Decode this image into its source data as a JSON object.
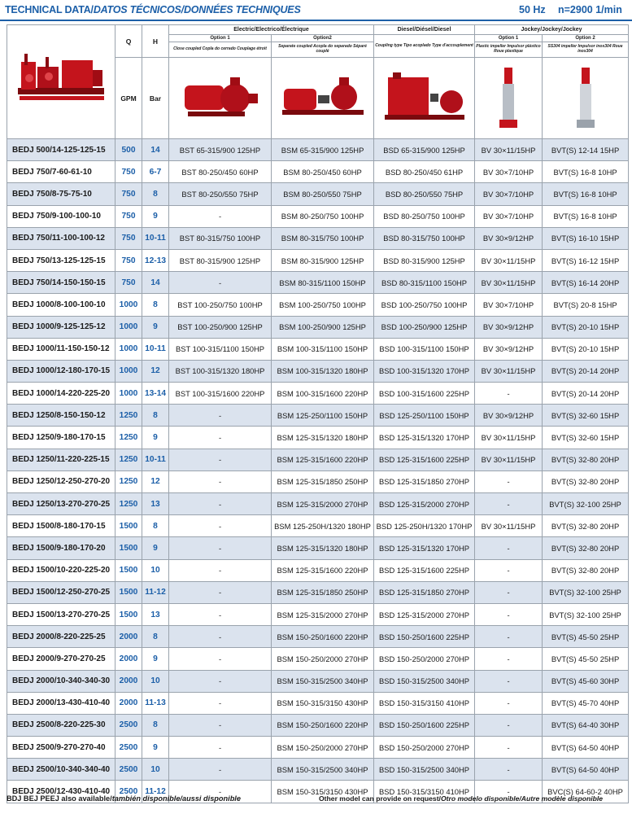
{
  "header": {
    "title_bold": "TECHNICAL DATA/",
    "title_italic": "DATOS TÉCNICOS/DONNÉES TECHNIQUES",
    "hz": "50 Hz",
    "rpm": "n=2900 1/min"
  },
  "columns": {
    "q": "Q",
    "h": "H",
    "q_unit": "GPM",
    "h_unit": "Bar",
    "electric_group": "Electric/Electrico/Électrique",
    "diesel_group": "Diesel/Diésel/Diesel",
    "jockey_group": "Jockey/Jockey/Jockey",
    "e_opt1": "Option 1",
    "e_opt2": "Option2",
    "j_opt1": "Option 1",
    "j_opt2": "Option 2",
    "e_opt1_desc": "Close coupled Copla do cerrado Couplage étroit",
    "e_opt2_desc": "Separate coupled Acopla do separado Séparé couplé",
    "d_desc": "Coupling type Tipo acoplado Type d'accouplement",
    "j_opt1_desc": "Plastic impeller Impulsor plástico Roue plastique",
    "j_opt2_desc": "SS304 impeller Impulsor inox304 Roue inox304"
  },
  "rows": [
    {
      "model": "BEDJ 500/14-125-125-15",
      "q": "500",
      "h": "14",
      "e1": "BST 65-315/900 125HP",
      "e2": "BSM 65-315/900 125HP",
      "d": "BSD 65-315/900 125HP",
      "j1": "BV 30×11/15HP",
      "j2": "BVT(S) 12-14 15HP"
    },
    {
      "model": "BEDJ 750/7-60-61-10",
      "q": "750",
      "h": "6-7",
      "e1": "BST 80-250/450 60HP",
      "e2": "BSM 80-250/450 60HP",
      "d": "BSD 80-250/450 61HP",
      "j1": "BV 30×7/10HP",
      "j2": "BVT(S) 16-8 10HP"
    },
    {
      "model": "BEDJ 750/8-75-75-10",
      "q": "750",
      "h": "8",
      "e1": "BST 80-250/550 75HP",
      "e2": "BSM 80-250/550 75HP",
      "d": "BSD 80-250/550 75HP",
      "j1": "BV 30×7/10HP",
      "j2": "BVT(S) 16-8 10HP"
    },
    {
      "model": "BEDJ 750/9-100-100-10",
      "q": "750",
      "h": "9",
      "e1": "-",
      "e2": "BSM 80-250/750 100HP",
      "d": "BSD 80-250/750 100HP",
      "j1": "BV 30×7/10HP",
      "j2": "BVT(S) 16-8 10HP"
    },
    {
      "model": "BEDJ 750/11-100-100-12",
      "q": "750",
      "h": "10-11",
      "e1": "BST 80-315/750 100HP",
      "e2": "BSM 80-315/750 100HP",
      "d": "BSD 80-315/750 100HP",
      "j1": "BV 30×9/12HP",
      "j2": "BVT(S) 16-10 15HP"
    },
    {
      "model": "BEDJ 750/13-125-125-15",
      "q": "750",
      "h": "12-13",
      "e1": "BST 80-315/900 125HP",
      "e2": "BSM 80-315/900 125HP",
      "d": "BSD 80-315/900 125HP",
      "j1": "BV 30×11/15HP",
      "j2": "BVT(S) 16-12 15HP"
    },
    {
      "model": "BEDJ 750/14-150-150-15",
      "q": "750",
      "h": "14",
      "e1": "-",
      "e2": "BSM 80-315/1100 150HP",
      "d": "BSD 80-315/1100 150HP",
      "j1": "BV 30×11/15HP",
      "j2": "BVT(S) 16-14 20HP"
    },
    {
      "model": "BEDJ 1000/8-100-100-10",
      "q": "1000",
      "h": "8",
      "e1": "BST 100-250/750 100HP",
      "e2": "BSM 100-250/750 100HP",
      "d": "BSD 100-250/750 100HP",
      "j1": "BV 30×7/10HP",
      "j2": "BVT(S) 20-8 15HP"
    },
    {
      "model": "BEDJ 1000/9-125-125-12",
      "q": "1000",
      "h": "9",
      "e1": "BST 100-250/900 125HP",
      "e2": "BSM 100-250/900 125HP",
      "d": "BSD 100-250/900 125HP",
      "j1": "BV 30×9/12HP",
      "j2": "BVT(S) 20-10 15HP"
    },
    {
      "model": "BEDJ 1000/11-150-150-12",
      "q": "1000",
      "h": "10-11",
      "e1": "BST 100-315/1100 150HP",
      "e2": "BSM 100-315/1100 150HP",
      "d": "BSD 100-315/1100 150HP",
      "j1": "BV 30×9/12HP",
      "j2": "BVT(S) 20-10 15HP"
    },
    {
      "model": "BEDJ 1000/12-180-170-15",
      "q": "1000",
      "h": "12",
      "e1": "BST 100-315/1320 180HP",
      "e2": "BSM 100-315/1320 180HP",
      "d": "BSD 100-315/1320 170HP",
      "j1": "BV 30×11/15HP",
      "j2": "BVT(S) 20-14 20HP"
    },
    {
      "model": "BEDJ 1000/14-220-225-20",
      "q": "1000",
      "h": "13-14",
      "e1": "BST 100-315/1600 220HP",
      "e2": "BSM 100-315/1600 220HP",
      "d": "BSD 100-315/1600 225HP",
      "j1": "-",
      "j2": "BVT(S) 20-14 20HP"
    },
    {
      "model": "BEDJ 1250/8-150-150-12",
      "q": "1250",
      "h": "8",
      "e1": "-",
      "e2": "BSM 125-250/1100 150HP",
      "d": "BSD 125-250/1100 150HP",
      "j1": "BV 30×9/12HP",
      "j2": "BVT(S) 32-60 15HP"
    },
    {
      "model": "BEDJ 1250/9-180-170-15",
      "q": "1250",
      "h": "9",
      "e1": "-",
      "e2": "BSM 125-315/1320 180HP",
      "d": "BSD 125-315/1320 170HP",
      "j1": "BV 30×11/15HP",
      "j2": "BVT(S) 32-60 15HP"
    },
    {
      "model": "BEDJ 1250/11-220-225-15",
      "q": "1250",
      "h": "10-11",
      "e1": "-",
      "e2": "BSM 125-315/1600 220HP",
      "d": "BSD 125-315/1600 225HP",
      "j1": "BV 30×11/15HP",
      "j2": "BVT(S) 32-80 20HP"
    },
    {
      "model": "BEDJ 1250/12-250-270-20",
      "q": "1250",
      "h": "12",
      "e1": "-",
      "e2": "BSM 125-315/1850 250HP",
      "d": "BSD 125-315/1850 270HP",
      "j1": "-",
      "j2": "BVT(S) 32-80 20HP"
    },
    {
      "model": "BEDJ 1250/13-270-270-25",
      "q": "1250",
      "h": "13",
      "e1": "-",
      "e2": "BSM 125-315/2000 270HP",
      "d": "BSD 125-315/2000 270HP",
      "j1": "-",
      "j2": "BVT(S) 32-100 25HP"
    },
    {
      "model": "BEDJ 1500/8-180-170-15",
      "q": "1500",
      "h": "8",
      "e1": "-",
      "e2": "BSM 125-250H/1320 180HP",
      "d": "BSD 125-250H/1320 170HP",
      "j1": "BV 30×11/15HP",
      "j2": "BVT(S) 32-80 20HP"
    },
    {
      "model": "BEDJ 1500/9-180-170-20",
      "q": "1500",
      "h": "9",
      "e1": "-",
      "e2": "BSM 125-315/1320 180HP",
      "d": "BSD 125-315/1320 170HP",
      "j1": "-",
      "j2": "BVT(S) 32-80 20HP"
    },
    {
      "model": "BEDJ 1500/10-220-225-20",
      "q": "1500",
      "h": "10",
      "e1": "-",
      "e2": "BSM 125-315/1600 220HP",
      "d": "BSD 125-315/1600 225HP",
      "j1": "-",
      "j2": "BVT(S) 32-80 20HP"
    },
    {
      "model": "BEDJ 1500/12-250-270-25",
      "q": "1500",
      "h": "11-12",
      "e1": "-",
      "e2": "BSM 125-315/1850 250HP",
      "d": "BSD 125-315/1850 270HP",
      "j1": "-",
      "j2": "BVT(S) 32-100 25HP"
    },
    {
      "model": "BEDJ 1500/13-270-270-25",
      "q": "1500",
      "h": "13",
      "e1": "-",
      "e2": "BSM 125-315/2000 270HP",
      "d": "BSD 125-315/2000 270HP",
      "j1": "-",
      "j2": "BVT(S) 32-100 25HP"
    },
    {
      "model": "BEDJ 2000/8-220-225-25",
      "q": "2000",
      "h": "8",
      "e1": "-",
      "e2": "BSM 150-250/1600 220HP",
      "d": "BSD 150-250/1600 225HP",
      "j1": "-",
      "j2": "BVT(S) 45-50 25HP"
    },
    {
      "model": "BEDJ 2000/9-270-270-25",
      "q": "2000",
      "h": "9",
      "e1": "-",
      "e2": "BSM 150-250/2000 270HP",
      "d": "BSD 150-250/2000 270HP",
      "j1": "-",
      "j2": "BVT(S) 45-50 25HP"
    },
    {
      "model": "BEDJ 2000/10-340-340-30",
      "q": "2000",
      "h": "10",
      "e1": "-",
      "e2": "BSM 150-315/2500 340HP",
      "d": "BSD 150-315/2500 340HP",
      "j1": "-",
      "j2": "BVT(S) 45-60 30HP"
    },
    {
      "model": "BEDJ 2000/13-430-410-40",
      "q": "2000",
      "h": "11-13",
      "e1": "-",
      "e2": "BSM 150-315/3150 430HP",
      "d": "BSD 150-315/3150 410HP",
      "j1": "-",
      "j2": "BVT(S) 45-70 40HP"
    },
    {
      "model": "BEDJ 2500/8-220-225-30",
      "q": "2500",
      "h": "8",
      "e1": "-",
      "e2": "BSM 150-250/1600 220HP",
      "d": "BSD 150-250/1600 225HP",
      "j1": "-",
      "j2": "BVT(S) 64-40 30HP"
    },
    {
      "model": "BEDJ 2500/9-270-270-40",
      "q": "2500",
      "h": "9",
      "e1": "-",
      "e2": "BSM 150-250/2000 270HP",
      "d": "BSD 150-250/2000 270HP",
      "j1": "-",
      "j2": "BVT(S) 64-50 40HP"
    },
    {
      "model": "BEDJ 2500/10-340-340-40",
      "q": "2500",
      "h": "10",
      "e1": "-",
      "e2": "BSM 150-315/2500 340HP",
      "d": "BSD 150-315/2500 340HP",
      "j1": "-",
      "j2": "BVT(S) 64-50 40HP"
    },
    {
      "model": "BEDJ 2500/12-430-410-40",
      "q": "2500",
      "h": "11-12",
      "e1": "-",
      "e2": "BSM 150-315/3150 430HP",
      "d": "BSD 150-315/3150 410HP",
      "j1": "-",
      "j2": "BVC(S) 64-60-2 40HP"
    }
  ],
  "alt_rows": [
    0,
    2,
    4,
    6,
    8,
    10,
    12,
    14,
    16,
    18,
    20,
    22,
    24,
    26,
    28
  ],
  "footer": {
    "left_bold": "BDJ BEJ PEEJ also available/",
    "left_italic": "también disponible/aussi disponible",
    "right_bold": "Other model can provide on request/",
    "right_italic": "Otro modelo disponible/Autre modèle disponible"
  },
  "colors": {
    "accent": "#1c5fa8",
    "pump_red": "#c4141c",
    "row_alt": "#dbe3ee"
  }
}
